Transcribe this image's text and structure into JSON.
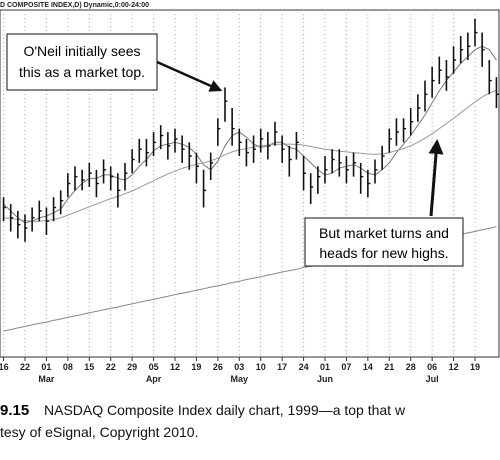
{
  "chart_data": {
    "type": "ohlc",
    "header": "D COMPOSITE INDEX,D) Dynamic,0:00-24:00",
    "categories": [
      "16",
      null,
      null,
      "22",
      null,
      null,
      "01",
      null,
      null,
      "08",
      null,
      null,
      "15",
      null,
      null,
      "22",
      null,
      null,
      "29",
      null,
      null,
      "05",
      null,
      null,
      "12",
      null,
      null,
      "19",
      null,
      null,
      "26",
      null,
      null,
      "03",
      null,
      null,
      "10",
      null,
      null,
      "17",
      null,
      null,
      "24",
      null,
      null,
      "01",
      null,
      null,
      "07",
      null,
      null,
      "14",
      null,
      null,
      "21",
      null,
      null,
      "28",
      null,
      null,
      "06",
      null,
      null,
      "12",
      null,
      null,
      "19",
      null,
      null,
      null
    ],
    "category_months": [
      null,
      null,
      null,
      null,
      null,
      null,
      "Mar",
      null,
      null,
      null,
      null,
      null,
      null,
      null,
      null,
      null,
      null,
      null,
      null,
      null,
      null,
      "Apr",
      null,
      null,
      null,
      null,
      null,
      null,
      null,
      null,
      null,
      null,
      null,
      "May",
      null,
      null,
      null,
      null,
      null,
      null,
      null,
      null,
      null,
      null,
      null,
      "Jun",
      null,
      null,
      null,
      null,
      null,
      null,
      null,
      null,
      null,
      null,
      null,
      null,
      null,
      null,
      "Jul",
      null,
      null,
      null,
      null,
      null,
      null,
      null,
      null,
      null
    ],
    "high": [
      2360,
      2340,
      2320,
      2310,
      2330,
      2350,
      2330,
      2360,
      2380,
      2430,
      2450,
      2440,
      2460,
      2440,
      2470,
      2450,
      2430,
      2460,
      2500,
      2530,
      2530,
      2550,
      2570,
      2550,
      2560,
      2540,
      2520,
      2490,
      2440,
      2490,
      2590,
      2680,
      2620,
      2560,
      2530,
      2540,
      2560,
      2550,
      2580,
      2540,
      2510,
      2550,
      2480,
      2430,
      2450,
      2480,
      2500,
      2500,
      2480,
      2490,
      2460,
      2440,
      2470,
      2510,
      2560,
      2590,
      2590,
      2620,
      2660,
      2700,
      2740,
      2770,
      2760,
      2800,
      2830,
      2840,
      2880,
      2840,
      2760,
      2710
    ],
    "low": [
      2290,
      2260,
      2240,
      2230,
      2260,
      2290,
      2250,
      2290,
      2310,
      2360,
      2380,
      2380,
      2390,
      2360,
      2400,
      2380,
      2330,
      2380,
      2430,
      2460,
      2450,
      2480,
      2500,
      2470,
      2490,
      2460,
      2440,
      2400,
      2330,
      2410,
      2510,
      2580,
      2510,
      2480,
      2450,
      2460,
      2490,
      2470,
      2510,
      2460,
      2420,
      2470,
      2380,
      2340,
      2370,
      2400,
      2430,
      2420,
      2400,
      2420,
      2370,
      2360,
      2400,
      2440,
      2490,
      2510,
      2520,
      2540,
      2580,
      2610,
      2650,
      2690,
      2670,
      2720,
      2750,
      2760,
      2800,
      2740,
      2660,
      2620
    ],
    "close": [
      2330,
      2300,
      2280,
      2270,
      2300,
      2320,
      2290,
      2330,
      2350,
      2400,
      2420,
      2410,
      2430,
      2400,
      2440,
      2420,
      2380,
      2430,
      2470,
      2500,
      2490,
      2520,
      2540,
      2510,
      2530,
      2500,
      2480,
      2450,
      2380,
      2460,
      2560,
      2640,
      2560,
      2520,
      2490,
      2500,
      2530,
      2510,
      2550,
      2500,
      2470,
      2520,
      2430,
      2390,
      2420,
      2440,
      2470,
      2460,
      2440,
      2460,
      2420,
      2400,
      2440,
      2480,
      2530,
      2550,
      2560,
      2580,
      2620,
      2660,
      2700,
      2730,
      2710,
      2760,
      2790,
      2800,
      2840,
      2790,
      2700,
      2660
    ],
    "bar_color": "#111111",
    "moving_averages": [
      {
        "color": "#777777",
        "values": [
          2340,
          2320,
          2300,
          2285,
          2290,
          2300,
          2305,
          2315,
          2325,
          2355,
          2380,
          2400,
          2415,
          2415,
          2425,
          2425,
          2415,
          2410,
          2425,
          2450,
          2470,
          2495,
          2510,
          2515,
          2520,
          2515,
          2505,
          2485,
          2455,
          2440,
          2465,
          2510,
          2540,
          2550,
          2535,
          2515,
          2505,
          2510,
          2520,
          2520,
          2505,
          2500,
          2480,
          2460,
          2440,
          2425,
          2430,
          2445,
          2450,
          2455,
          2445,
          2430,
          2425,
          2440,
          2460,
          2490,
          2515,
          2540,
          2570,
          2600,
          2635,
          2670,
          2700,
          2725,
          2750,
          2770,
          2790,
          2800,
          2790,
          2760
        ]
      },
      {
        "color": "#999999",
        "values": [
          2300,
          2298,
          2295,
          2292,
          2290,
          2290,
          2292,
          2295,
          2300,
          2308,
          2316,
          2324,
          2332,
          2340,
          2348,
          2356,
          2362,
          2370,
          2378,
          2388,
          2398,
          2408,
          2418,
          2428,
          2436,
          2444,
          2450,
          2456,
          2460,
          2466,
          2474,
          2484,
          2492,
          2498,
          2502,
          2506,
          2510,
          2512,
          2514,
          2515,
          2515,
          2514,
          2512,
          2508,
          2504,
          2500,
          2497,
          2494,
          2492,
          2490,
          2488,
          2486,
          2485,
          2486,
          2490,
          2496,
          2502,
          2510,
          2520,
          2532,
          2545,
          2560,
          2575,
          2590,
          2606,
          2622,
          2638,
          2652,
          2664,
          2672
        ]
      },
      {
        "color": "#888888",
        "values": [
          1970,
          1974,
          1979,
          1983,
          1988,
          1992,
          1996,
          2001,
          2005,
          2010,
          2014,
          2018,
          2023,
          2027,
          2032,
          2036,
          2040,
          2045,
          2049,
          2054,
          2058,
          2062,
          2067,
          2071,
          2076,
          2080,
          2084,
          2089,
          2093,
          2098,
          2102,
          2106,
          2111,
          2115,
          2120,
          2124,
          2128,
          2133,
          2137,
          2142,
          2146,
          2150,
          2155,
          2159,
          2164,
          2168,
          2172,
          2177,
          2181,
          2186,
          2190,
          2194,
          2199,
          2203,
          2208,
          2212,
          2216,
          2221,
          2225,
          2230,
          2234,
          2238,
          2243,
          2247,
          2252,
          2256,
          2260,
          2265,
          2269,
          2274
        ]
      }
    ],
    "ylim": [
      1900,
      2900
    ],
    "grid": true,
    "annotations": [
      {
        "lines": [
          "O'Neil initially sees",
          "this as a market top."
        ]
      },
      {
        "lines": [
          "But market turns and",
          "heads for new highs."
        ]
      }
    ],
    "figure_number": "9.15",
    "caption_lines": [
      "NASDAQ Composite Index daily chart, 1999—a top that w",
      "tesy of eSignal, Copyright 2010."
    ]
  }
}
